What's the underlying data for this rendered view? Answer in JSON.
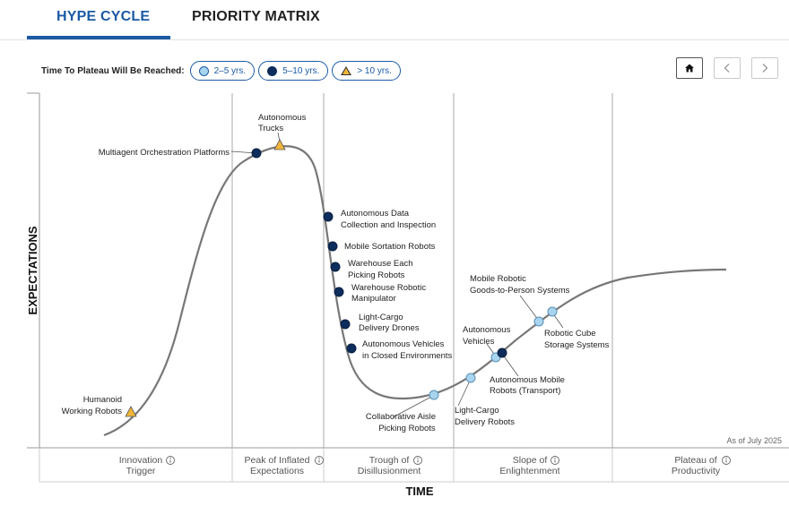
{
  "tabs": [
    {
      "label": "HYPE CYCLE",
      "active": true
    },
    {
      "label": "PRIORITY MATRIX",
      "active": false
    }
  ],
  "legend": {
    "title": "Time To Plateau Will Be Reached:",
    "items": [
      {
        "label": "2–5 yrs.",
        "marker": "light-blue-circle",
        "color": "#a8d4ee"
      },
      {
        "label": "5–10 yrs.",
        "marker": "dark-navy-circle",
        "color": "#0d2d5c"
      },
      {
        "label": "> 10 yrs.",
        "marker": "yellow-triangle",
        "color": "#f2b63a"
      }
    ]
  },
  "nav": {
    "home": "home-icon",
    "prev": "chevron-left-icon",
    "next": "chevron-right-icon"
  },
  "colors": {
    "accent": "#1b5aa5",
    "curve": "#777777",
    "short": "#a8d4ee",
    "mid": "#0d2d5c",
    "long": "#f2b63a"
  },
  "chart_data": {
    "type": "hype-cycle",
    "ylabel": "EXPECTATIONS",
    "xlabel": "TIME",
    "as_of": "As of July 2025",
    "phases": [
      {
        "line1": "Innovation",
        "line2": "Trigger"
      },
      {
        "line1": "Peak of Inflated",
        "line2": "Expectations"
      },
      {
        "line1": "Trough of",
        "line2": "Disillusionment"
      },
      {
        "line1": "Slope of",
        "line2": "Enlightenment"
      },
      {
        "line1": "Plateau of",
        "line2": "Productivity"
      }
    ],
    "items": [
      {
        "name": "Humanoid Working Robots",
        "lines": [
          "Humanoid",
          "Working Robots"
        ],
        "category": ">10"
      },
      {
        "name": "Multiagent Orchestration Platforms",
        "lines": [
          "Multiagent Orchestration Platforms"
        ],
        "category": "5-10"
      },
      {
        "name": "Autonomous Trucks",
        "lines": [
          "Autonomous",
          "Trucks"
        ],
        "category": ">10"
      },
      {
        "name": "Autonomous Data Collection and Inspection",
        "lines": [
          "Autonomous Data",
          "Collection and Inspection"
        ],
        "category": "5-10"
      },
      {
        "name": "Mobile Sortation Robots",
        "lines": [
          "Mobile Sortation Robots"
        ],
        "category": "5-10"
      },
      {
        "name": "Warehouse Each Picking Robots",
        "lines": [
          "Warehouse Each",
          "Picking Robots"
        ],
        "category": "5-10"
      },
      {
        "name": "Warehouse Robotic Manipulator",
        "lines": [
          "Warehouse Robotic",
          "Manipulator"
        ],
        "category": "5-10"
      },
      {
        "name": "Light-Cargo Delivery Drones",
        "lines": [
          "Light-Cargo",
          "Delivery Drones"
        ],
        "category": "5-10"
      },
      {
        "name": "Autonomous Vehicles in Closed Environments",
        "lines": [
          "Autonomous Vehicles",
          "in Closed Environments"
        ],
        "category": "5-10"
      },
      {
        "name": "Collaborative Aisle Picking Robots",
        "lines": [
          "Collaborative Aisle",
          "Picking Robots"
        ],
        "category": "2-5"
      },
      {
        "name": "Light-Cargo Delivery Robots",
        "lines": [
          "Light-Cargo",
          "Delivery Robots"
        ],
        "category": "2-5"
      },
      {
        "name": "Autonomous Vehicles",
        "lines": [
          "Autonomous",
          "Vehicles"
        ],
        "category": "2-5"
      },
      {
        "name": "Autonomous Mobile Robots (Transport)",
        "lines": [
          "Autonomous Mobile",
          "Robots (Transport)"
        ],
        "category": "5-10"
      },
      {
        "name": "Mobile Robotic Goods-to-Person Systems",
        "lines": [
          "Mobile Robotic",
          "Goods-to-Person Systems"
        ],
        "category": "2-5"
      },
      {
        "name": "Robotic Cube Storage Systems",
        "lines": [
          "Robotic Cube",
          "Storage Systems"
        ],
        "category": "2-5"
      }
    ]
  }
}
